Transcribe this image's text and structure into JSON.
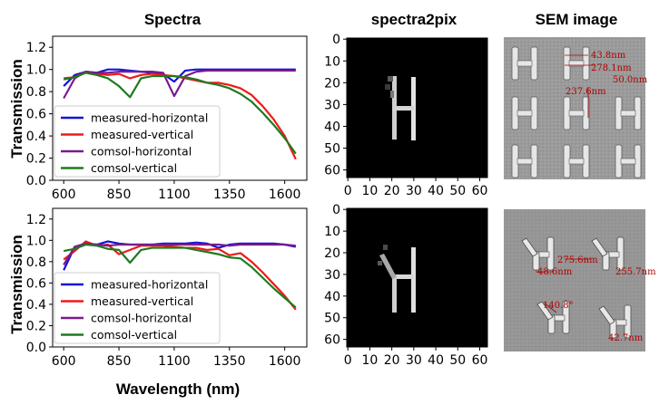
{
  "titles": {
    "spectra": "Spectra",
    "pix": "spectra2pix",
    "sem": "SEM image"
  },
  "xlabel": "Wavelength (nm)",
  "ylabel": "Transmission",
  "colors": {
    "measured-horizontal": "#1515d6",
    "measured-vertical": "#ee1a1a",
    "comsol-horizontal": "#7a1b8e",
    "comsol-vertical": "#1f7a1f"
  },
  "chart_data": [
    {
      "type": "line",
      "title": "",
      "xlabel": "",
      "ylabel": "Transmission",
      "xlim": [
        550,
        1700
      ],
      "ylim": [
        0.0,
        1.3
      ],
      "xticks": [
        "600",
        "850",
        "1100",
        "1350",
        "1600"
      ],
      "yticks": [
        "0.0",
        "0.2",
        "0.4",
        "0.6",
        "0.8",
        "1.0",
        "1.2"
      ],
      "legend": "lower-left",
      "series": [
        {
          "name": "measured-horizontal",
          "x": [
            600,
            650,
            700,
            750,
            800,
            850,
            900,
            950,
            1000,
            1050,
            1100,
            1150,
            1200,
            1250,
            1300,
            1350,
            1400,
            1450,
            1500,
            1550,
            1600,
            1650
          ],
          "y": [
            0.85,
            0.95,
            0.98,
            0.97,
            1.0,
            1.0,
            0.99,
            0.98,
            0.97,
            0.96,
            0.89,
            0.99,
            1.0,
            1.0,
            1.0,
            1.0,
            1.0,
            1.0,
            1.0,
            1.0,
            1.0,
            1.0
          ]
        },
        {
          "name": "measured-vertical",
          "x": [
            600,
            650,
            700,
            750,
            800,
            850,
            900,
            950,
            1000,
            1050,
            1100,
            1150,
            1200,
            1250,
            1300,
            1350,
            1400,
            1450,
            1500,
            1550,
            1600,
            1650
          ],
          "y": [
            0.92,
            0.93,
            0.98,
            0.96,
            0.95,
            0.96,
            0.92,
            0.95,
            0.96,
            0.95,
            0.94,
            0.92,
            0.9,
            0.88,
            0.88,
            0.86,
            0.83,
            0.77,
            0.67,
            0.55,
            0.4,
            0.19
          ]
        },
        {
          "name": "comsol-horizontal",
          "x": [
            600,
            650,
            700,
            750,
            800,
            850,
            900,
            950,
            1000,
            1050,
            1100,
            1150,
            1200,
            1250,
            1300,
            1350,
            1400,
            1450,
            1500,
            1550,
            1600,
            1650
          ],
          "y": [
            0.74,
            0.92,
            0.98,
            0.97,
            0.97,
            0.98,
            0.98,
            0.98,
            0.98,
            0.97,
            0.76,
            0.94,
            0.98,
            0.99,
            0.99,
            0.99,
            0.99,
            0.99,
            0.99,
            0.99,
            0.99,
            0.99
          ]
        },
        {
          "name": "comsol-vertical",
          "x": [
            600,
            650,
            700,
            750,
            800,
            850,
            900,
            950,
            1000,
            1050,
            1100,
            1150,
            1200,
            1250,
            1300,
            1350,
            1400,
            1450,
            1500,
            1550,
            1600,
            1650
          ],
          "y": [
            0.91,
            0.93,
            0.97,
            0.95,
            0.92,
            0.85,
            0.75,
            0.92,
            0.94,
            0.94,
            0.94,
            0.93,
            0.91,
            0.88,
            0.86,
            0.83,
            0.78,
            0.71,
            0.61,
            0.5,
            0.38,
            0.24
          ]
        }
      ]
    },
    {
      "type": "line",
      "title": "",
      "xlabel": "Wavelength (nm)",
      "ylabel": "Transmission",
      "xlim": [
        550,
        1700
      ],
      "ylim": [
        0.0,
        1.3
      ],
      "xticks": [
        "600",
        "850",
        "1100",
        "1350",
        "1600"
      ],
      "yticks": [
        "0.0",
        "0.2",
        "0.4",
        "0.6",
        "0.8",
        "1.0",
        "1.2"
      ],
      "legend": "lower-left",
      "series": [
        {
          "name": "measured-horizontal",
          "x": [
            600,
            650,
            700,
            750,
            800,
            850,
            900,
            950,
            1000,
            1050,
            1100,
            1150,
            1200,
            1250,
            1300,
            1350,
            1400,
            1450,
            1500,
            1550,
            1600,
            1650
          ],
          "y": [
            0.72,
            0.94,
            0.97,
            0.96,
            0.99,
            0.97,
            0.96,
            0.96,
            0.96,
            0.97,
            0.97,
            0.97,
            0.98,
            0.97,
            0.93,
            0.96,
            0.97,
            0.97,
            0.97,
            0.97,
            0.96,
            0.94
          ]
        },
        {
          "name": "measured-vertical",
          "x": [
            600,
            650,
            700,
            750,
            800,
            850,
            900,
            950,
            1000,
            1050,
            1100,
            1150,
            1200,
            1250,
            1300,
            1350,
            1400,
            1450,
            1500,
            1550,
            1600,
            1650
          ],
          "y": [
            0.82,
            0.9,
            0.99,
            0.95,
            0.96,
            0.87,
            0.91,
            0.95,
            0.95,
            0.95,
            0.94,
            0.93,
            0.93,
            0.91,
            0.92,
            0.86,
            0.88,
            0.8,
            0.7,
            0.59,
            0.48,
            0.35
          ]
        },
        {
          "name": "comsol-horizontal",
          "x": [
            600,
            650,
            700,
            750,
            800,
            850,
            900,
            950,
            1000,
            1050,
            1100,
            1150,
            1200,
            1250,
            1300,
            1350,
            1400,
            1450,
            1500,
            1550,
            1600,
            1650
          ],
          "y": [
            0.77,
            0.94,
            0.97,
            0.96,
            0.95,
            0.96,
            0.96,
            0.96,
            0.96,
            0.96,
            0.96,
            0.96,
            0.96,
            0.96,
            0.96,
            0.95,
            0.96,
            0.96,
            0.96,
            0.96,
            0.96,
            0.95
          ]
        },
        {
          "name": "comsol-vertical",
          "x": [
            600,
            650,
            700,
            750,
            800,
            850,
            900,
            950,
            1000,
            1050,
            1100,
            1150,
            1200,
            1250,
            1300,
            1350,
            1400,
            1450,
            1500,
            1550,
            1600,
            1650
          ],
          "y": [
            0.9,
            0.92,
            0.96,
            0.95,
            0.92,
            0.91,
            0.79,
            0.91,
            0.93,
            0.93,
            0.93,
            0.93,
            0.91,
            0.89,
            0.87,
            0.84,
            0.83,
            0.75,
            0.65,
            0.55,
            0.46,
            0.37
          ]
        }
      ]
    }
  ],
  "pix_axes": {
    "ticks": [
      "0",
      "10",
      "20",
      "30",
      "40",
      "50",
      "60"
    ]
  },
  "sem_top": {
    "labels": [
      "43.8nm",
      "278.1nm",
      "50.0nm",
      "237.6nm"
    ]
  },
  "sem_bottom": {
    "labels": [
      "275.6nm",
      "48.6nm",
      "255.7nm",
      "140.8°",
      "42.7nm"
    ]
  }
}
